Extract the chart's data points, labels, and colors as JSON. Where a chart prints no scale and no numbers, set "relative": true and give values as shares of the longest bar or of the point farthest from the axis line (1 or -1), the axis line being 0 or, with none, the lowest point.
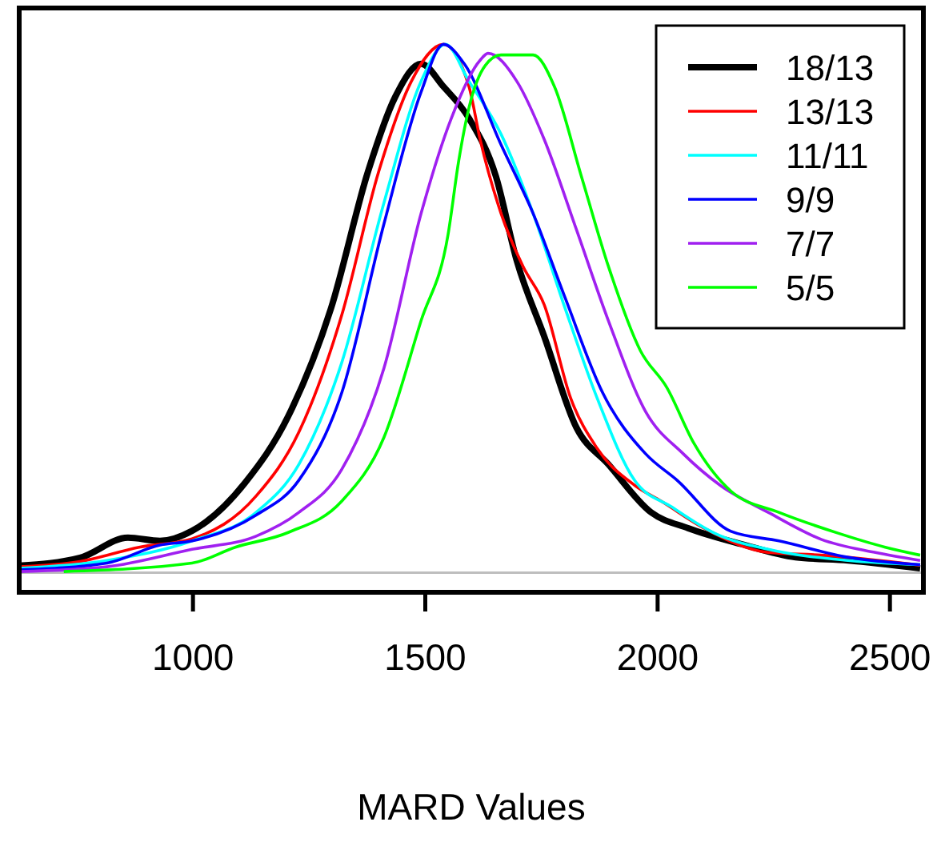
{
  "chart_data": {
    "type": "line",
    "xlabel": "MARD Values",
    "relative": true,
    "xlim": [
      626,
      2572
    ],
    "xticks": [
      1000,
      1500,
      2000,
      2500
    ],
    "legend": "top right",
    "grid": false,
    "marker": "none",
    "line_style": "solid",
    "series": [
      {
        "name": "18/13",
        "color": "#000000",
        "x": [
          626,
          757,
          860,
          929,
          998,
          1112,
          1205,
          1297,
          1377,
          1435,
          1491,
          1539,
          1594,
          1652,
          1697,
          1756,
          1825,
          1894,
          1986,
          2066,
          2180,
          2297,
          2410,
          2565
        ],
        "values": [
          0.013,
          0.028,
          0.066,
          0.06,
          0.079,
          0.17,
          0.296,
          0.5,
          0.76,
          0.9,
          0.963,
          0.92,
          0.86,
          0.75,
          0.59,
          0.447,
          0.275,
          0.205,
          0.114,
          0.084,
          0.054,
          0.029,
          0.023,
          0.008
        ]
      },
      {
        "name": "13/13",
        "color": "#ff0000",
        "x": [
          626,
          757,
          884,
          998,
          1136,
          1228,
          1320,
          1400,
          1470,
          1539,
          1594,
          1618,
          1663,
          1710,
          1756,
          1813,
          1870,
          1951,
          2008,
          2100,
          2238,
          2352,
          2565
        ],
        "values": [
          0.011,
          0.021,
          0.048,
          0.064,
          0.145,
          0.266,
          0.487,
          0.76,
          0.93,
          1.0,
          0.92,
          0.82,
          0.68,
          0.58,
          0.507,
          0.33,
          0.235,
          0.165,
          0.135,
          0.084,
          0.038,
          0.033,
          0.014
        ]
      },
      {
        "name": "11/11",
        "color": "#00ffff",
        "x": [
          626,
          815,
          998,
          1136,
          1228,
          1320,
          1411,
          1491,
          1543,
          1594,
          1663,
          1732,
          1801,
          1870,
          1951,
          2031,
          2124,
          2238,
          2410,
          2565
        ],
        "values": [
          0.008,
          0.023,
          0.06,
          0.114,
          0.205,
          0.397,
          0.7,
          0.93,
          1.0,
          0.93,
          0.83,
          0.68,
          0.5,
          0.33,
          0.174,
          0.124,
          0.074,
          0.044,
          0.023,
          0.015
        ]
      },
      {
        "name": "9/9",
        "color": "#0000ff",
        "x": [
          626,
          815,
          929,
          998,
          1136,
          1228,
          1320,
          1411,
          1491,
          1539,
          1584,
          1663,
          1732,
          1801,
          1882,
          1974,
          2043,
          2158,
          2261,
          2410,
          2565
        ],
        "values": [
          0.005,
          0.018,
          0.052,
          0.06,
          0.109,
          0.175,
          0.34,
          0.66,
          0.91,
          1.0,
          0.963,
          0.81,
          0.68,
          0.52,
          0.34,
          0.225,
          0.174,
          0.078,
          0.06,
          0.029,
          0.015
        ]
      },
      {
        "name": "7/7",
        "color": "#a020f0",
        "x": [
          626,
          815,
          998,
          1136,
          1228,
          1320,
          1411,
          1491,
          1556,
          1618,
          1635,
          1697,
          1756,
          1825,
          1894,
          1974,
          2055,
          2135,
          2238,
          2352,
          2469,
          2565
        ],
        "values": [
          0.002,
          0.011,
          0.044,
          0.069,
          0.114,
          0.195,
          0.387,
          0.68,
          0.86,
          0.97,
          0.983,
          0.93,
          0.82,
          0.65,
          0.477,
          0.305,
          0.225,
          0.165,
          0.114,
          0.063,
          0.038,
          0.023
        ]
      },
      {
        "name": "5/5",
        "color": "#00ff00",
        "x": [
          722,
          998,
          1091,
          1205,
          1320,
          1411,
          1491,
          1549,
          1572,
          1594,
          1629,
          1663,
          1732,
          1778,
          1836,
          1894,
          1963,
          2020,
          2078,
          2158,
          2261,
          2387,
          2490,
          2565
        ],
        "values": [
          0.002,
          0.018,
          0.048,
          0.076,
          0.135,
          0.256,
          0.477,
          0.64,
          0.78,
          0.88,
          0.96,
          0.98,
          0.98,
          0.92,
          0.75,
          0.58,
          0.42,
          0.35,
          0.245,
          0.154,
          0.114,
          0.075,
          0.048,
          0.033
        ]
      }
    ]
  }
}
